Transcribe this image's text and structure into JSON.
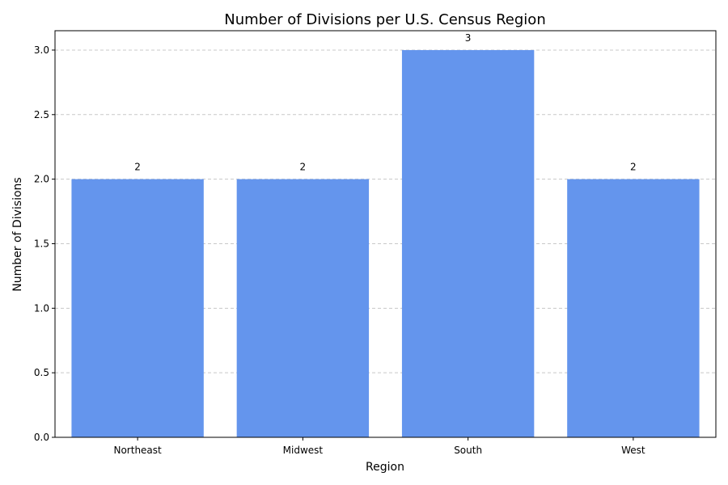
{
  "chart_data": {
    "type": "bar",
    "title": "Number of Divisions per U.S. Census Region",
    "xlabel": "Region",
    "ylabel": "Number of Divisions",
    "categories": [
      "Northeast",
      "Midwest",
      "South",
      "West"
    ],
    "values": [
      2,
      2,
      3,
      2
    ],
    "data_labels": [
      "2",
      "2",
      "3",
      "2"
    ],
    "ylim": [
      0,
      3.15
    ],
    "yticks": [
      0,
      0.5,
      1,
      1.5,
      2,
      2.5,
      3
    ],
    "ytick_labels": [
      "0.0",
      "0.5",
      "1.0",
      "1.5",
      "2.0",
      "2.5",
      "3.0"
    ],
    "grid": "y-dashed",
    "bar_color": "#6495ED"
  }
}
